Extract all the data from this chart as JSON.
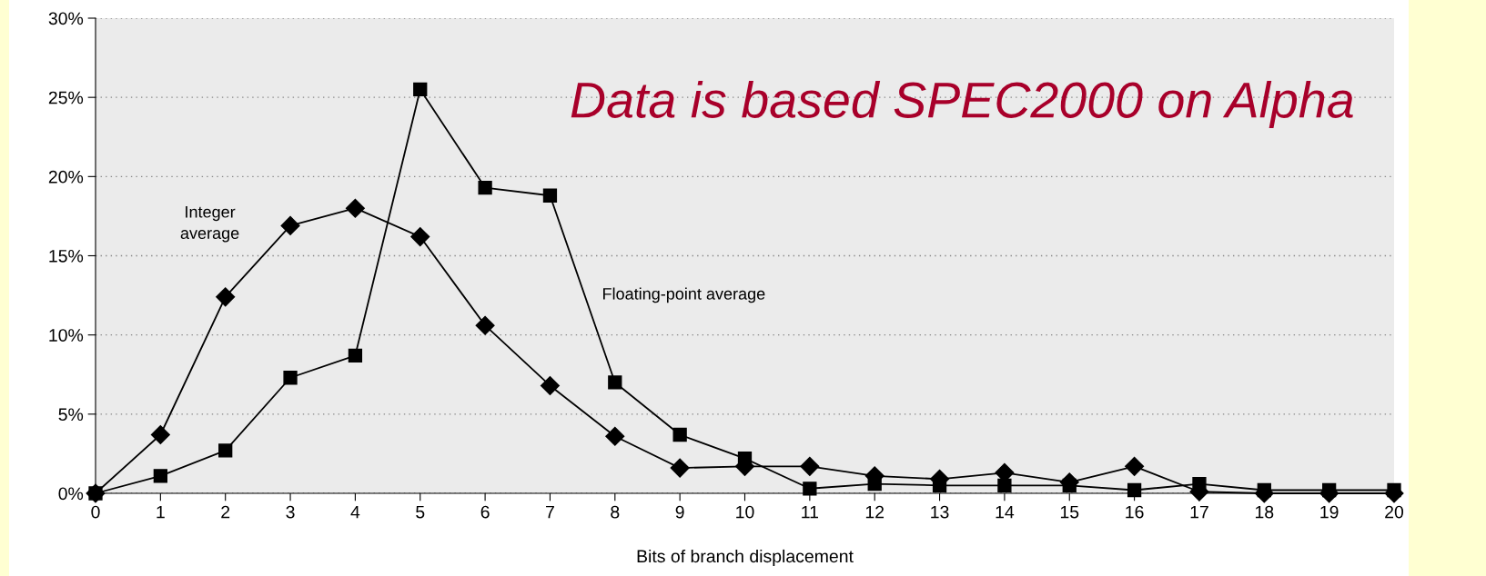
{
  "chart_data": {
    "type": "line",
    "xlabel": "Bits of branch displacement",
    "x": [
      0,
      1,
      2,
      3,
      4,
      5,
      6,
      7,
      8,
      9,
      10,
      11,
      12,
      13,
      14,
      15,
      16,
      17,
      18,
      19,
      20
    ],
    "series": [
      {
        "color": "#000000",
        "marker": "diamond",
        "values": [
          0,
          3.7,
          12.4,
          16.9,
          18.0,
          16.2,
          10.6,
          6.8,
          3.6,
          1.6,
          1.7,
          1.7,
          1.1,
          0.9,
          1.3,
          0.7,
          1.7,
          0.1,
          0,
          0,
          0
        ]
      },
      {
        "color": "#000000",
        "marker": "square",
        "values": [
          0,
          1.1,
          2.7,
          7.3,
          8.7,
          25.5,
          19.3,
          18.8,
          7.0,
          3.7,
          2.2,
          0.3,
          0.6,
          0.5,
          0.5,
          0.5,
          0.2,
          0.6,
          0.2,
          0.2,
          0.2
        ]
      }
    ],
    "xlim": [
      0,
      20
    ],
    "xticks": [
      0,
      1,
      2,
      3,
      4,
      5,
      6,
      7,
      8,
      9,
      10,
      11,
      12,
      13,
      14,
      15,
      16,
      17,
      18,
      19,
      20
    ],
    "ylim": [
      0,
      30
    ],
    "yticks": [
      {
        "value": 0,
        "label": "0%"
      },
      {
        "value": 5,
        "label": "5%"
      },
      {
        "value": 10,
        "label": "10%"
      },
      {
        "value": 15,
        "label": "15%"
      },
      {
        "value": 20,
        "label": "20%"
      },
      {
        "value": 25,
        "label": "25%"
      },
      {
        "value": 30,
        "label": "30%"
      }
    ],
    "grid": "y",
    "line_style": "solid",
    "annotations": [
      "Integer\naverage",
      "Floating-point average",
      "Data is based SPEC2000 on Alpha"
    ]
  }
}
